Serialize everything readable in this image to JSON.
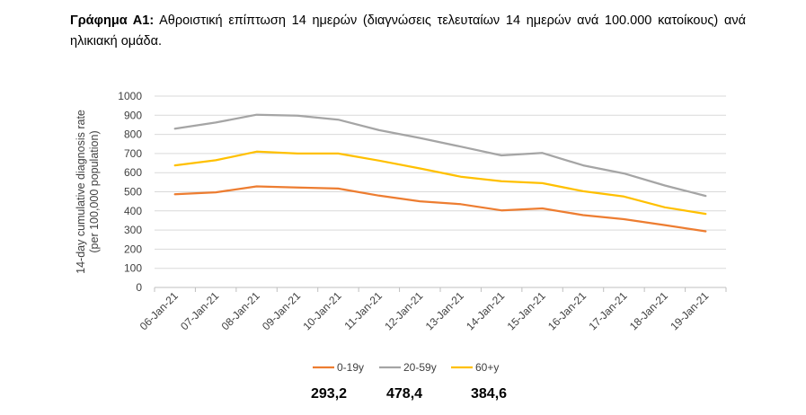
{
  "heading": {
    "label": "Γράφημα Α1:",
    "text": "Αθροιστική επίπτωση 14 ημερών (διαγνώσεις τελευταίων 14 ημερών ανά 100.000 κατοίκους) ανά ηλικιακή ομάδα."
  },
  "chart_data": {
    "type": "line",
    "title": "",
    "xlabel": "",
    "ylabel": "14-day cumulative diagnosis rate (per 100,000 population)",
    "ylabel_lines": [
      "14-day cumulative diagnosis rate",
      "(per 100,000 population)"
    ],
    "ylim": [
      0,
      1000
    ],
    "yticks": [
      0,
      100,
      200,
      300,
      400,
      500,
      600,
      700,
      800,
      900,
      1000
    ],
    "grid": true,
    "legend_position": "bottom",
    "categories": [
      "06-Jan-21",
      "07-Jan-21",
      "08-Jan-21",
      "09-Jan-21",
      "10-Jan-21",
      "11-Jan-21",
      "12-Jan-21",
      "13-Jan-21",
      "14-Jan-21",
      "15-Jan-21",
      "16-Jan-21",
      "17-Jan-21",
      "18-Jan-21",
      "19-Jan-21"
    ],
    "series": [
      {
        "name": "0-19y",
        "color": "#ED7D31",
        "values": [
          487,
          497,
          528,
          522,
          517,
          480,
          450,
          435,
          403,
          413,
          378,
          357,
          326,
          293.2
        ]
      },
      {
        "name": "20-59y",
        "color": "#A5A5A5",
        "values": [
          830,
          862,
          903,
          898,
          877,
          822,
          781,
          736,
          690,
          703,
          638,
          596,
          533,
          478.4
        ]
      },
      {
        "name": "60+y",
        "color": "#FFC000",
        "values": [
          638,
          665,
          710,
          700,
          700,
          663,
          622,
          579,
          555,
          545,
          503,
          475,
          419,
          384.6
        ]
      }
    ]
  },
  "totals": [
    "293,2",
    "478,4",
    "384,6"
  ]
}
